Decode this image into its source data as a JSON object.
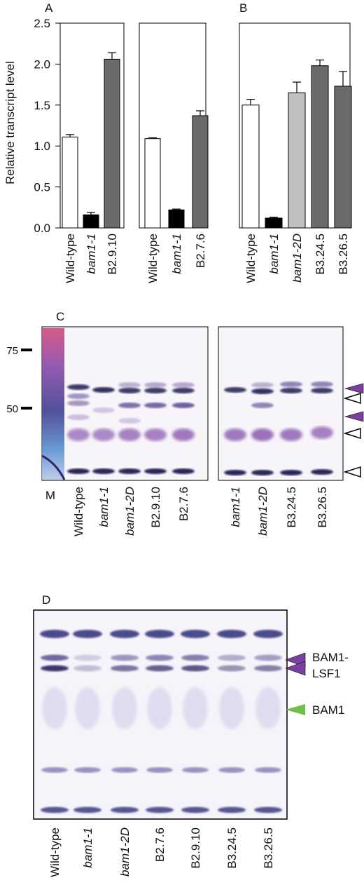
{
  "panel_letters": {
    "a": "A",
    "b": "B",
    "c": "C",
    "d": "D"
  },
  "chart_data": [
    {
      "type": "bar",
      "panel": "A",
      "ylabel": "Relative transcript level",
      "ylim": [
        0,
        2.5
      ],
      "yticks": [
        "0.0",
        "0.5",
        "1.0",
        "1.5",
        "2.0",
        "2.5"
      ],
      "groups": [
        {
          "categories": [
            "Wild-type",
            "bam1-1",
            "B2.9.10"
          ],
          "values": [
            1.11,
            0.16,
            2.06
          ],
          "errors": [
            0.03,
            0.03,
            0.08
          ],
          "colors": [
            "#ffffff",
            "#000000",
            "#6b6b6b"
          ]
        },
        {
          "categories": [
            "Wild-type",
            "bam1-1",
            "B2.7.6"
          ],
          "values": [
            1.09,
            0.22,
            1.37
          ],
          "errors": [
            0.01,
            0.01,
            0.06
          ],
          "colors": [
            "#ffffff",
            "#000000",
            "#6b6b6b"
          ]
        }
      ]
    },
    {
      "type": "bar",
      "panel": "B",
      "ylim": [
        0,
        2.5
      ],
      "categories": [
        "Wild-type",
        "bam1-1",
        "bam1-2D",
        "B3.24.5",
        "B3.26.5"
      ],
      "values": [
        1.5,
        0.12,
        1.65,
        1.98,
        1.73
      ],
      "errors": [
        0.07,
        0.01,
        0.13,
        0.07,
        0.18
      ],
      "colors": [
        "#ffffff",
        "#000000",
        "#c0c0c0",
        "#6b6b6b",
        "#6b6b6b"
      ]
    }
  ],
  "gel_c": {
    "marker_labels": [
      "75",
      "50"
    ],
    "lane_labels_left": [
      "M",
      "Wild-type",
      "bam1-1",
      "bam1-2D",
      "B2.9.10",
      "B2.7.6"
    ],
    "lane_labels_right": [
      "bam1-1",
      "bam1-2D",
      "B3.24.5",
      "B3.26.5"
    ],
    "arrow_colors": {
      "filled": "#7b3fa0",
      "open": "#000000"
    }
  },
  "gel_d": {
    "lane_labels": [
      "Wild-type",
      "bam1-1",
      "bam1-2D",
      "B2.7.6",
      "B2.9.10",
      "B3.24.5",
      "B3.26.5"
    ],
    "bam1_lsf1_label_line1": "BAM1-",
    "bam1_lsf1_label_line2": "LSF1",
    "bam1_label": "BAM1",
    "arrow_colors": {
      "bam1_lsf1": "#7b3fa0",
      "bam1": "#6fbf4a"
    }
  }
}
